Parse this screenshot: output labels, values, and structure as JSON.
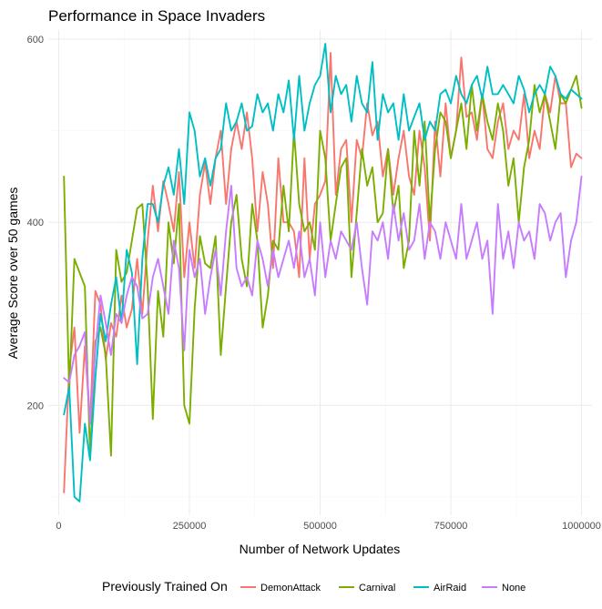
{
  "chart_data": {
    "type": "line",
    "title": "Performance in Space Invaders",
    "xlabel": "Number of Network Updates",
    "ylabel": "Average Score over 50 games",
    "xlim": [
      -20000,
      1020000
    ],
    "ylim": [
      80,
      610
    ],
    "x_ticks": [
      0,
      250000,
      500000,
      750000,
      1000000
    ],
    "x_tick_labels": [
      "0",
      "250000",
      "500000",
      "750000",
      "1000000"
    ],
    "y_ticks": [
      200,
      400,
      600
    ],
    "y_tick_labels": [
      "200",
      "400",
      "600"
    ],
    "grid": true,
    "legend": {
      "title": "Previously Trained On",
      "position": "bottom",
      "entries": [
        "DemonAttack",
        "Carnival",
        "AirRaid",
        "None"
      ]
    },
    "series": [
      {
        "name": "DemonAttack",
        "color": "#F8766D",
        "x": [
          10000,
          20000,
          30000,
          40000,
          50000,
          60000,
          70000,
          80000,
          90000,
          100000,
          110000,
          120000,
          130000,
          140000,
          150000,
          160000,
          170000,
          180000,
          190000,
          200000,
          210000,
          220000,
          230000,
          240000,
          250000,
          260000,
          270000,
          280000,
          290000,
          300000,
          310000,
          320000,
          330000,
          340000,
          350000,
          360000,
          370000,
          380000,
          390000,
          400000,
          410000,
          420000,
          430000,
          440000,
          450000,
          460000,
          470000,
          480000,
          490000,
          500000,
          510000,
          520000,
          530000,
          540000,
          550000,
          560000,
          570000,
          580000,
          590000,
          600000,
          610000,
          620000,
          630000,
          640000,
          650000,
          660000,
          670000,
          680000,
          690000,
          700000,
          710000,
          720000,
          730000,
          740000,
          750000,
          760000,
          770000,
          780000,
          790000,
          800000,
          810000,
          820000,
          830000,
          840000,
          850000,
          860000,
          870000,
          880000,
          890000,
          900000,
          910000,
          920000,
          930000,
          940000,
          950000,
          960000,
          970000,
          980000,
          990000,
          1000000
        ],
        "y": [
          105,
          240,
          285,
          170,
          265,
          180,
          325,
          310,
          250,
          290,
          275,
          320,
          285,
          305,
          360,
          300,
          380,
          440,
          390,
          445,
          420,
          390,
          455,
          340,
          400,
          350,
          430,
          465,
          420,
          470,
          500,
          420,
          480,
          510,
          480,
          520,
          470,
          390,
          455,
          420,
          350,
          470,
          400,
          400,
          390,
          340,
          470,
          360,
          420,
          430,
          445,
          585,
          430,
          480,
          490,
          400,
          490,
          470,
          530,
          495,
          510,
          450,
          480,
          430,
          470,
          500,
          450,
          430,
          500,
          460,
          380,
          510,
          450,
          530,
          470,
          500,
          580,
          515,
          520,
          490,
          540,
          480,
          470,
          510,
          530,
          480,
          500,
          490,
          540,
          470,
          500,
          480,
          540,
          520,
          560,
          530,
          530,
          460,
          475,
          470
        ]
      },
      {
        "name": "Carnival",
        "color": "#7CAE00",
        "x": [
          10000,
          20000,
          30000,
          40000,
          50000,
          60000,
          70000,
          80000,
          90000,
          100000,
          110000,
          120000,
          130000,
          140000,
          150000,
          160000,
          170000,
          180000,
          190000,
          200000,
          210000,
          220000,
          230000,
          240000,
          250000,
          260000,
          270000,
          280000,
          290000,
          300000,
          310000,
          320000,
          330000,
          340000,
          350000,
          360000,
          370000,
          380000,
          390000,
          400000,
          410000,
          420000,
          430000,
          440000,
          450000,
          460000,
          470000,
          480000,
          490000,
          500000,
          510000,
          520000,
          530000,
          540000,
          550000,
          560000,
          570000,
          580000,
          590000,
          600000,
          610000,
          620000,
          630000,
          640000,
          650000,
          660000,
          670000,
          680000,
          690000,
          700000,
          710000,
          720000,
          730000,
          740000,
          750000,
          760000,
          770000,
          780000,
          790000,
          800000,
          810000,
          820000,
          830000,
          840000,
          850000,
          860000,
          870000,
          880000,
          890000,
          900000,
          910000,
          920000,
          930000,
          940000,
          950000,
          960000,
          970000,
          980000,
          990000,
          1000000
        ],
        "y": [
          450,
          215,
          360,
          345,
          330,
          145,
          270,
          285,
          255,
          145,
          370,
          335,
          345,
          380,
          415,
          420,
          330,
          185,
          325,
          275,
          400,
          355,
          420,
          200,
          180,
          305,
          385,
          355,
          350,
          385,
          255,
          330,
          400,
          430,
          360,
          330,
          420,
          380,
          285,
          320,
          380,
          370,
          440,
          390,
          500,
          420,
          390,
          400,
          370,
          500,
          470,
          380,
          420,
          460,
          470,
          340,
          410,
          480,
          440,
          460,
          400,
          410,
          480,
          410,
          440,
          350,
          380,
          500,
          440,
          510,
          400,
          480,
          520,
          510,
          470,
          500,
          530,
          480,
          550,
          500,
          540,
          510,
          490,
          530,
          500,
          440,
          470,
          400,
          460,
          490,
          550,
          520,
          540,
          510,
          480,
          540,
          530,
          545,
          560,
          525
        ]
      },
      {
        "name": "AirRaid",
        "color": "#00BFC4",
        "x": [
          10000,
          20000,
          30000,
          40000,
          50000,
          60000,
          70000,
          80000,
          90000,
          100000,
          110000,
          120000,
          130000,
          140000,
          150000,
          160000,
          170000,
          180000,
          190000,
          200000,
          210000,
          220000,
          230000,
          240000,
          250000,
          260000,
          270000,
          280000,
          290000,
          300000,
          310000,
          320000,
          330000,
          340000,
          350000,
          360000,
          370000,
          380000,
          390000,
          400000,
          410000,
          420000,
          430000,
          440000,
          450000,
          460000,
          470000,
          480000,
          490000,
          500000,
          510000,
          520000,
          530000,
          540000,
          550000,
          560000,
          570000,
          580000,
          590000,
          600000,
          610000,
          620000,
          630000,
          640000,
          650000,
          660000,
          670000,
          680000,
          690000,
          700000,
          710000,
          720000,
          730000,
          740000,
          750000,
          760000,
          770000,
          780000,
          790000,
          800000,
          810000,
          820000,
          830000,
          840000,
          850000,
          860000,
          870000,
          880000,
          890000,
          900000,
          910000,
          920000,
          930000,
          940000,
          950000,
          960000,
          970000,
          980000,
          990000,
          1000000
        ],
        "y": [
          190,
          220,
          100,
          95,
          180,
          140,
          230,
          300,
          270,
          310,
          340,
          290,
          370,
          345,
          245,
          360,
          420,
          420,
          400,
          440,
          460,
          430,
          480,
          420,
          520,
          500,
          450,
          470,
          440,
          470,
          480,
          530,
          500,
          510,
          530,
          500,
          505,
          540,
          520,
          530,
          500,
          540,
          520,
          555,
          490,
          560,
          500,
          530,
          550,
          560,
          595,
          520,
          560,
          540,
          550,
          510,
          560,
          530,
          520,
          575,
          490,
          540,
          520,
          530,
          490,
          540,
          500,
          515,
          530,
          490,
          510,
          500,
          540,
          545,
          530,
          560,
          540,
          530,
          550,
          560,
          535,
          570,
          540,
          540,
          550,
          540,
          530,
          560,
          545,
          520,
          540,
          550,
          540,
          570,
          560,
          540,
          535,
          545,
          540,
          535
        ]
      },
      {
        "name": "None",
        "color": "#C77CFF",
        "x": [
          10000,
          20000,
          30000,
          40000,
          50000,
          60000,
          70000,
          80000,
          90000,
          100000,
          110000,
          120000,
          130000,
          140000,
          150000,
          160000,
          170000,
          180000,
          190000,
          200000,
          210000,
          220000,
          230000,
          240000,
          250000,
          260000,
          270000,
          280000,
          290000,
          300000,
          310000,
          320000,
          330000,
          340000,
          350000,
          360000,
          370000,
          380000,
          390000,
          400000,
          410000,
          420000,
          430000,
          440000,
          450000,
          460000,
          470000,
          480000,
          490000,
          500000,
          510000,
          520000,
          530000,
          540000,
          550000,
          560000,
          570000,
          580000,
          590000,
          600000,
          610000,
          620000,
          630000,
          640000,
          650000,
          660000,
          670000,
          680000,
          690000,
          700000,
          710000,
          720000,
          730000,
          740000,
          750000,
          760000,
          770000,
          780000,
          790000,
          800000,
          810000,
          820000,
          830000,
          840000,
          850000,
          860000,
          870000,
          880000,
          890000,
          900000,
          910000,
          920000,
          930000,
          940000,
          950000,
          960000,
          970000,
          980000,
          990000,
          1000000
        ],
        "y": [
          230,
          225,
          255,
          265,
          280,
          180,
          260,
          320,
          290,
          255,
          300,
          290,
          320,
          340,
          330,
          295,
          300,
          340,
          360,
          330,
          300,
          380,
          350,
          260,
          370,
          340,
          360,
          300,
          340,
          370,
          320,
          390,
          440,
          350,
          330,
          340,
          320,
          380,
          360,
          330,
          370,
          340,
          360,
          380,
          350,
          390,
          340,
          360,
          320,
          400,
          340,
          380,
          360,
          390,
          380,
          370,
          400,
          350,
          310,
          390,
          380,
          400,
          360,
          420,
          380,
          410,
          370,
          380,
          420,
          360,
          400,
          390,
          360,
          400,
          380,
          360,
          420,
          360,
          380,
          400,
          360,
          380,
          300,
          420,
          360,
          390,
          350,
          400,
          380,
          390,
          360,
          420,
          410,
          380,
          400,
          410,
          340,
          380,
          400,
          450
        ]
      }
    ]
  }
}
